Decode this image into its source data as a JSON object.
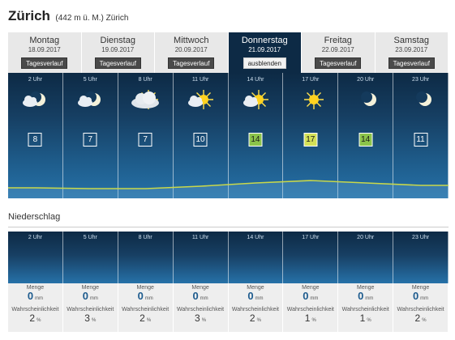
{
  "header": {
    "city": "Zürich",
    "elevation": "(442 m ü. M.) Zürich"
  },
  "days": [
    {
      "name": "Montag",
      "date": "18.09.2017",
      "button": "Tagesverlauf",
      "active": false
    },
    {
      "name": "Dienstag",
      "date": "19.09.2017",
      "button": "Tagesverlauf",
      "active": false
    },
    {
      "name": "Mittwoch",
      "date": "20.09.2017",
      "button": "Tagesverlauf",
      "active": false
    },
    {
      "name": "Donnerstag",
      "date": "21.09.2017",
      "button": "ausblenden",
      "active": true
    },
    {
      "name": "Freitag",
      "date": "22.09.2017",
      "button": "Tagesverlauf",
      "active": false
    },
    {
      "name": "Samstag",
      "date": "23.09.2017",
      "button": "Tagesverlauf",
      "active": false
    }
  ],
  "hours": [
    {
      "time": "2 Uhr",
      "icon": "moon-cloud-icon",
      "temp": "8",
      "temp_bg": "",
      "temp_color": "#ffffff",
      "amount": "0",
      "probability": "2"
    },
    {
      "time": "5 Uhr",
      "icon": "moon-cloud-icon",
      "temp": "7",
      "temp_bg": "",
      "temp_color": "#ffffff",
      "amount": "0",
      "probability": "3"
    },
    {
      "time": "8 Uhr",
      "icon": "cloudy-sun-icon",
      "temp": "7",
      "temp_bg": "",
      "temp_color": "#ffffff",
      "amount": "0",
      "probability": "2"
    },
    {
      "time": "11 Uhr",
      "icon": "sun-cloud-icon",
      "temp": "10",
      "temp_bg": "",
      "temp_color": "#ffffff",
      "amount": "0",
      "probability": "3"
    },
    {
      "time": "14 Uhr",
      "icon": "sun-cloud-icon",
      "temp": "14",
      "temp_bg": "#8bc34a",
      "temp_color": "#1a1a1a",
      "amount": "0",
      "probability": "2"
    },
    {
      "time": "17 Uhr",
      "icon": "sun-icon",
      "temp": "17",
      "temp_bg": "#d4e157",
      "temp_color": "#1a1a1a",
      "amount": "0",
      "probability": "1"
    },
    {
      "time": "20 Uhr",
      "icon": "moon-icon",
      "temp": "14",
      "temp_bg": "#8bc34a",
      "temp_color": "#1a1a1a",
      "amount": "0",
      "probability": "1"
    },
    {
      "time": "23 Uhr",
      "icon": "moon-icon",
      "temp": "11",
      "temp_bg": "",
      "temp_color": "#ffffff",
      "amount": "0",
      "probability": "2"
    }
  ],
  "precip": {
    "title": "Niederschlag",
    "amount_label": "Menge",
    "amount_unit": "mm",
    "probability_label": "Wahrscheinlichkeit",
    "probability_unit": "%"
  },
  "colors": {
    "panel_dark": "#0d2a45",
    "curve": "#c9d84a",
    "value_blue": "#1d5b8e"
  }
}
